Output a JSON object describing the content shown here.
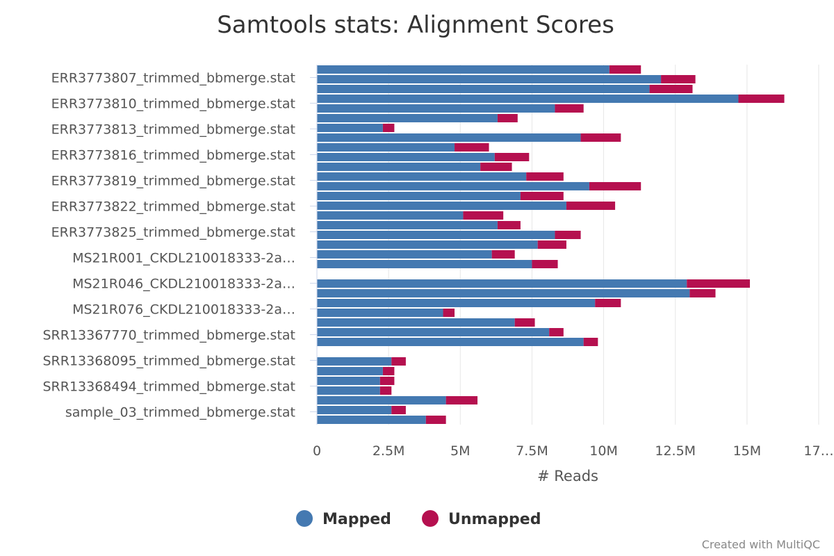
{
  "chart_data": {
    "type": "bar",
    "orientation": "horizontal",
    "stacked": true,
    "title": "Samtools stats: Alignment Scores",
    "xlabel": "# Reads",
    "ylabel": "",
    "xlim": [
      0,
      17500000
    ],
    "x_ticks": [
      "0",
      "2.5M",
      "5M",
      "7.5M",
      "10M",
      "12.5M",
      "15M",
      "17…"
    ],
    "x_tick_values": [
      0,
      2500000,
      5000000,
      7500000,
      10000000,
      12500000,
      15000000,
      17500000
    ],
    "y_tick_labels": [
      "ERR3773807_trimmed_bbmerge.stat",
      "ERR3773810_trimmed_bbmerge.stat",
      "ERR3773813_trimmed_bbmerge.stat",
      "ERR3773816_trimmed_bbmerge.stat",
      "ERR3773819_trimmed_bbmerge.stat",
      "ERR3773822_trimmed_bbmerge.stat",
      "ERR3773825_trimmed_bbmerge.stat",
      "MS21R001_CKDL210018333-2a…",
      "MS21R046_CKDL210018333-2a…",
      "MS21R076_CKDL210018333-2a…",
      "SRR13367770_trimmed_bbmerge.stat",
      "SRR13368095_trimmed_bbmerge.stat",
      "SRR13368494_trimmed_bbmerge.stat",
      "sample_03_trimmed_bbmerge.stat"
    ],
    "series": [
      {
        "name": "Mapped",
        "color": "#4479b1",
        "values": [
          10200000,
          12000000,
          11600000,
          14700000,
          8300000,
          6300000,
          2300000,
          9200000,
          4800000,
          6200000,
          5700000,
          7300000,
          9500000,
          7100000,
          8700000,
          5100000,
          6300000,
          8300000,
          7700000,
          6100000,
          7500000,
          0,
          12900000,
          13000000,
          9700000,
          4400000,
          6900000,
          8100000,
          9300000,
          0,
          2600000,
          2300000,
          2200000,
          2200000,
          4500000,
          2600000,
          3800000
        ]
      },
      {
        "name": "Unmapped",
        "color": "#b5104f",
        "values": [
          1100000,
          1200000,
          1500000,
          1600000,
          1000000,
          700000,
          400000,
          1400000,
          1200000,
          1200000,
          1100000,
          1300000,
          1800000,
          1500000,
          1700000,
          1400000,
          800000,
          900000,
          1000000,
          800000,
          900000,
          0,
          2200000,
          900000,
          900000,
          400000,
          700000,
          500000,
          500000,
          0,
          500000,
          400000,
          500000,
          400000,
          1100000,
          500000,
          700000
        ]
      }
    ],
    "legend": {
      "placement": "bottom-center",
      "items": [
        "Mapped",
        "Unmapped"
      ]
    },
    "grid": {
      "x": true,
      "y": false
    }
  },
  "footer": {
    "credit": "Created with MultiQC"
  }
}
